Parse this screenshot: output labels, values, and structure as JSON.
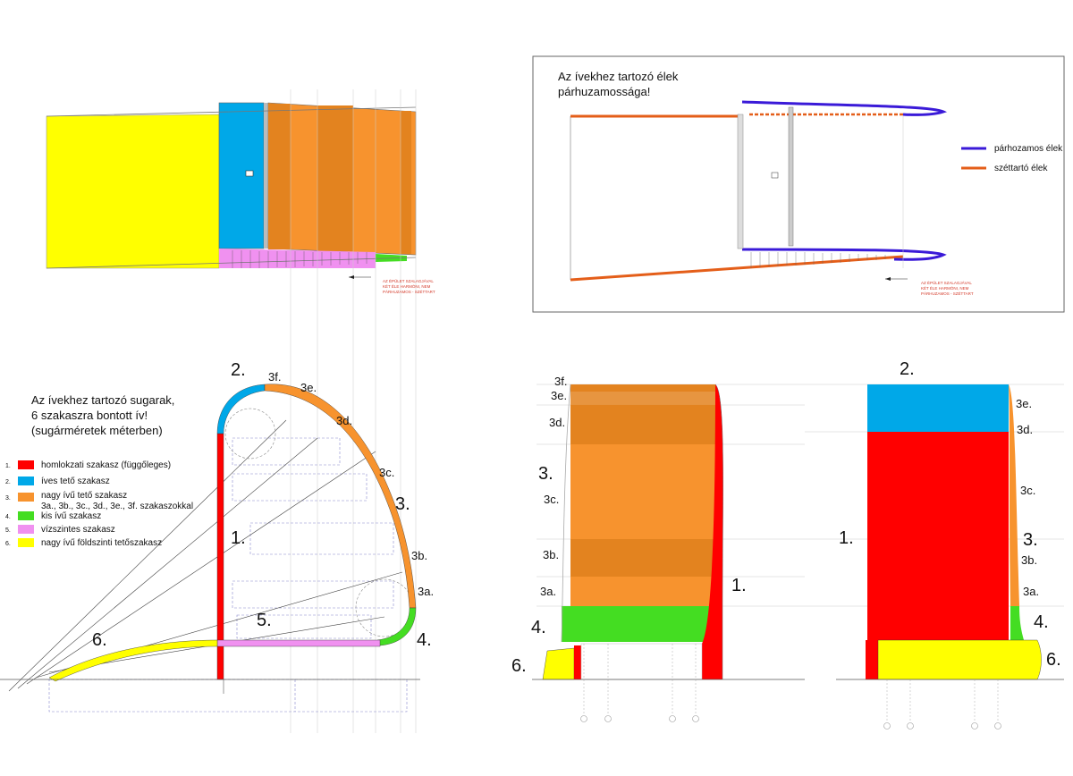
{
  "colors": {
    "red": "#ff0000",
    "blue": "#00a8e8",
    "orange": "#f7932e",
    "orange_dark": "#e3831f",
    "green": "#44dd22",
    "pink": "#f091f0",
    "yellow": "#ffff00",
    "purple": "#3a1ad8",
    "orange_line": "#e45e19"
  },
  "parallel_panel": {
    "title_line1": "Az ívekhez tartozó élek",
    "title_line2": "párhuzamossága!",
    "legend": [
      {
        "label": "párhozamos élek",
        "color": "#3a1ad8"
      },
      {
        "label": "széttartó élek",
        "color": "#e45e19"
      }
    ]
  },
  "radii_panel": {
    "title_line1": "Az ívekhez tartozó sugarak,",
    "title_line2": "6 szakaszra bontott ív!",
    "title_line3": "(sugárméretek méterben)",
    "legend": [
      {
        "num": "1.",
        "label": "homlokzati szakasz (függőleges)",
        "color": "#ff0000"
      },
      {
        "num": "2.",
        "label": "íves tető szakasz",
        "color": "#00a8e8"
      },
      {
        "num": "3.",
        "label": "nagy ívű tető szakasz",
        "label2": "3a., 3b., 3c., 3d., 3e., 3f. szakaszokkal",
        "color": "#f7932e"
      },
      {
        "num": "4.",
        "label": "kis ívű szakasz",
        "color": "#44dd22"
      },
      {
        "num": "5.",
        "label": "vízszintes szakasz",
        "color": "#f091f0"
      },
      {
        "num": "6.",
        "label": "nagy ívű földszinti tetőszakasz",
        "color": "#ffff00"
      }
    ]
  },
  "section_labels": {
    "n1": "1.",
    "n2": "2.",
    "n3": "3.",
    "n4": "4.",
    "n5": "5.",
    "n6": "6.",
    "s3a": "3a.",
    "s3b": "3b.",
    "s3c": "3c.",
    "s3d": "3d.",
    "s3e": "3e.",
    "s3f": "3f."
  }
}
